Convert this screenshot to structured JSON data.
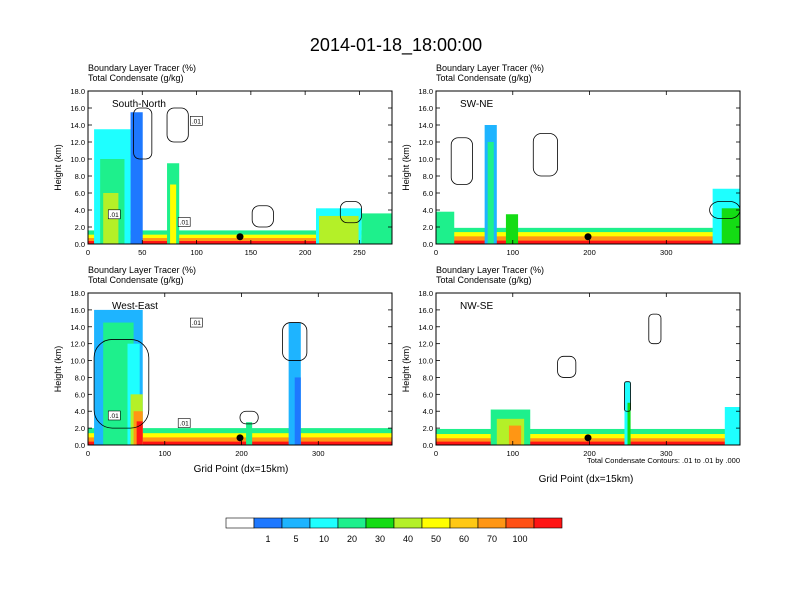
{
  "figure_title": "2014-01-18_18:00:00",
  "x_axis_label": "Grid Point (dx=15km)",
  "contour_note": "Total Condensate Contours: .01 to .01 by .000",
  "chart_data": [
    {
      "type": "heatmap",
      "panel_label": "South-North",
      "title_line1": "Boundary Layer Tracer   (%)",
      "title_line2": "Total Condensate   (g/kg)",
      "ylabel": "Height (km)",
      "xlim": [
        0,
        280
      ],
      "ylim": [
        0,
        18
      ],
      "xticks": [
        "0",
        "50",
        "100",
        "150",
        "200",
        "250"
      ],
      "yticks": [
        "0.0",
        "2.0",
        "4.0",
        "6.0",
        "8.0",
        "10.0",
        "12.0",
        "14.0",
        "16.0",
        "18.0"
      ],
      "contour_labels": [
        ".01",
        ".01",
        ".01"
      ],
      "marker_x": 140
    },
    {
      "type": "heatmap",
      "panel_label": "SW-NE",
      "title_line1": "Boundary Layer Tracer   (%)",
      "title_line2": "Total Condensate   (g/kg)",
      "ylabel": "Height (km)",
      "xlim": [
        0,
        396
      ],
      "ylim": [
        0,
        18
      ],
      "xticks": [
        "0",
        "100",
        "200",
        "300"
      ],
      "yticks": [
        "0.0",
        "2.0",
        "4.0",
        "6.0",
        "8.0",
        "10.0",
        "12.0",
        "14.0",
        "16.0",
        "18.0"
      ],
      "contour_labels": [],
      "marker_x": 198
    },
    {
      "type": "heatmap",
      "panel_label": "West-East",
      "title_line1": "Boundary Layer Tracer   (%)",
      "title_line2": "Total Condensate   (g/kg)",
      "ylabel": "Height (km)",
      "xlim": [
        0,
        396
      ],
      "ylim": [
        0,
        18
      ],
      "xticks": [
        "0",
        "100",
        "200",
        "300"
      ],
      "yticks": [
        "0.0",
        "2.0",
        "4.0",
        "6.0",
        "8.0",
        "10.0",
        "12.0",
        "14.0",
        "16.0",
        "18.0"
      ],
      "contour_labels": [
        ".01",
        ".01",
        ".01"
      ],
      "marker_x": 198
    },
    {
      "type": "heatmap",
      "panel_label": "NW-SE",
      "title_line1": "Boundary Layer Tracer   (%)",
      "title_line2": "Total Condensate   (g/kg)",
      "ylabel": "Height (km)",
      "xlim": [
        0,
        396
      ],
      "ylim": [
        0,
        18
      ],
      "xticks": [
        "0",
        "100",
        "200",
        "300"
      ],
      "yticks": [
        "0.0",
        "2.0",
        "4.0",
        "6.0",
        "8.0",
        "10.0",
        "12.0",
        "14.0",
        "16.0",
        "18.0"
      ],
      "contour_labels": [],
      "marker_x": 198
    }
  ],
  "colorbar": {
    "colors": [
      "#ffffff",
      "#1e78ff",
      "#1eb4ff",
      "#1effff",
      "#1ef08c",
      "#14dc14",
      "#b4f028",
      "#ffff00",
      "#ffc814",
      "#ff9614",
      "#ff5014",
      "#ff1414"
    ],
    "labels": [
      "1",
      "5",
      "10",
      "20",
      "30",
      "40",
      "50",
      "60",
      "70",
      "100"
    ]
  }
}
